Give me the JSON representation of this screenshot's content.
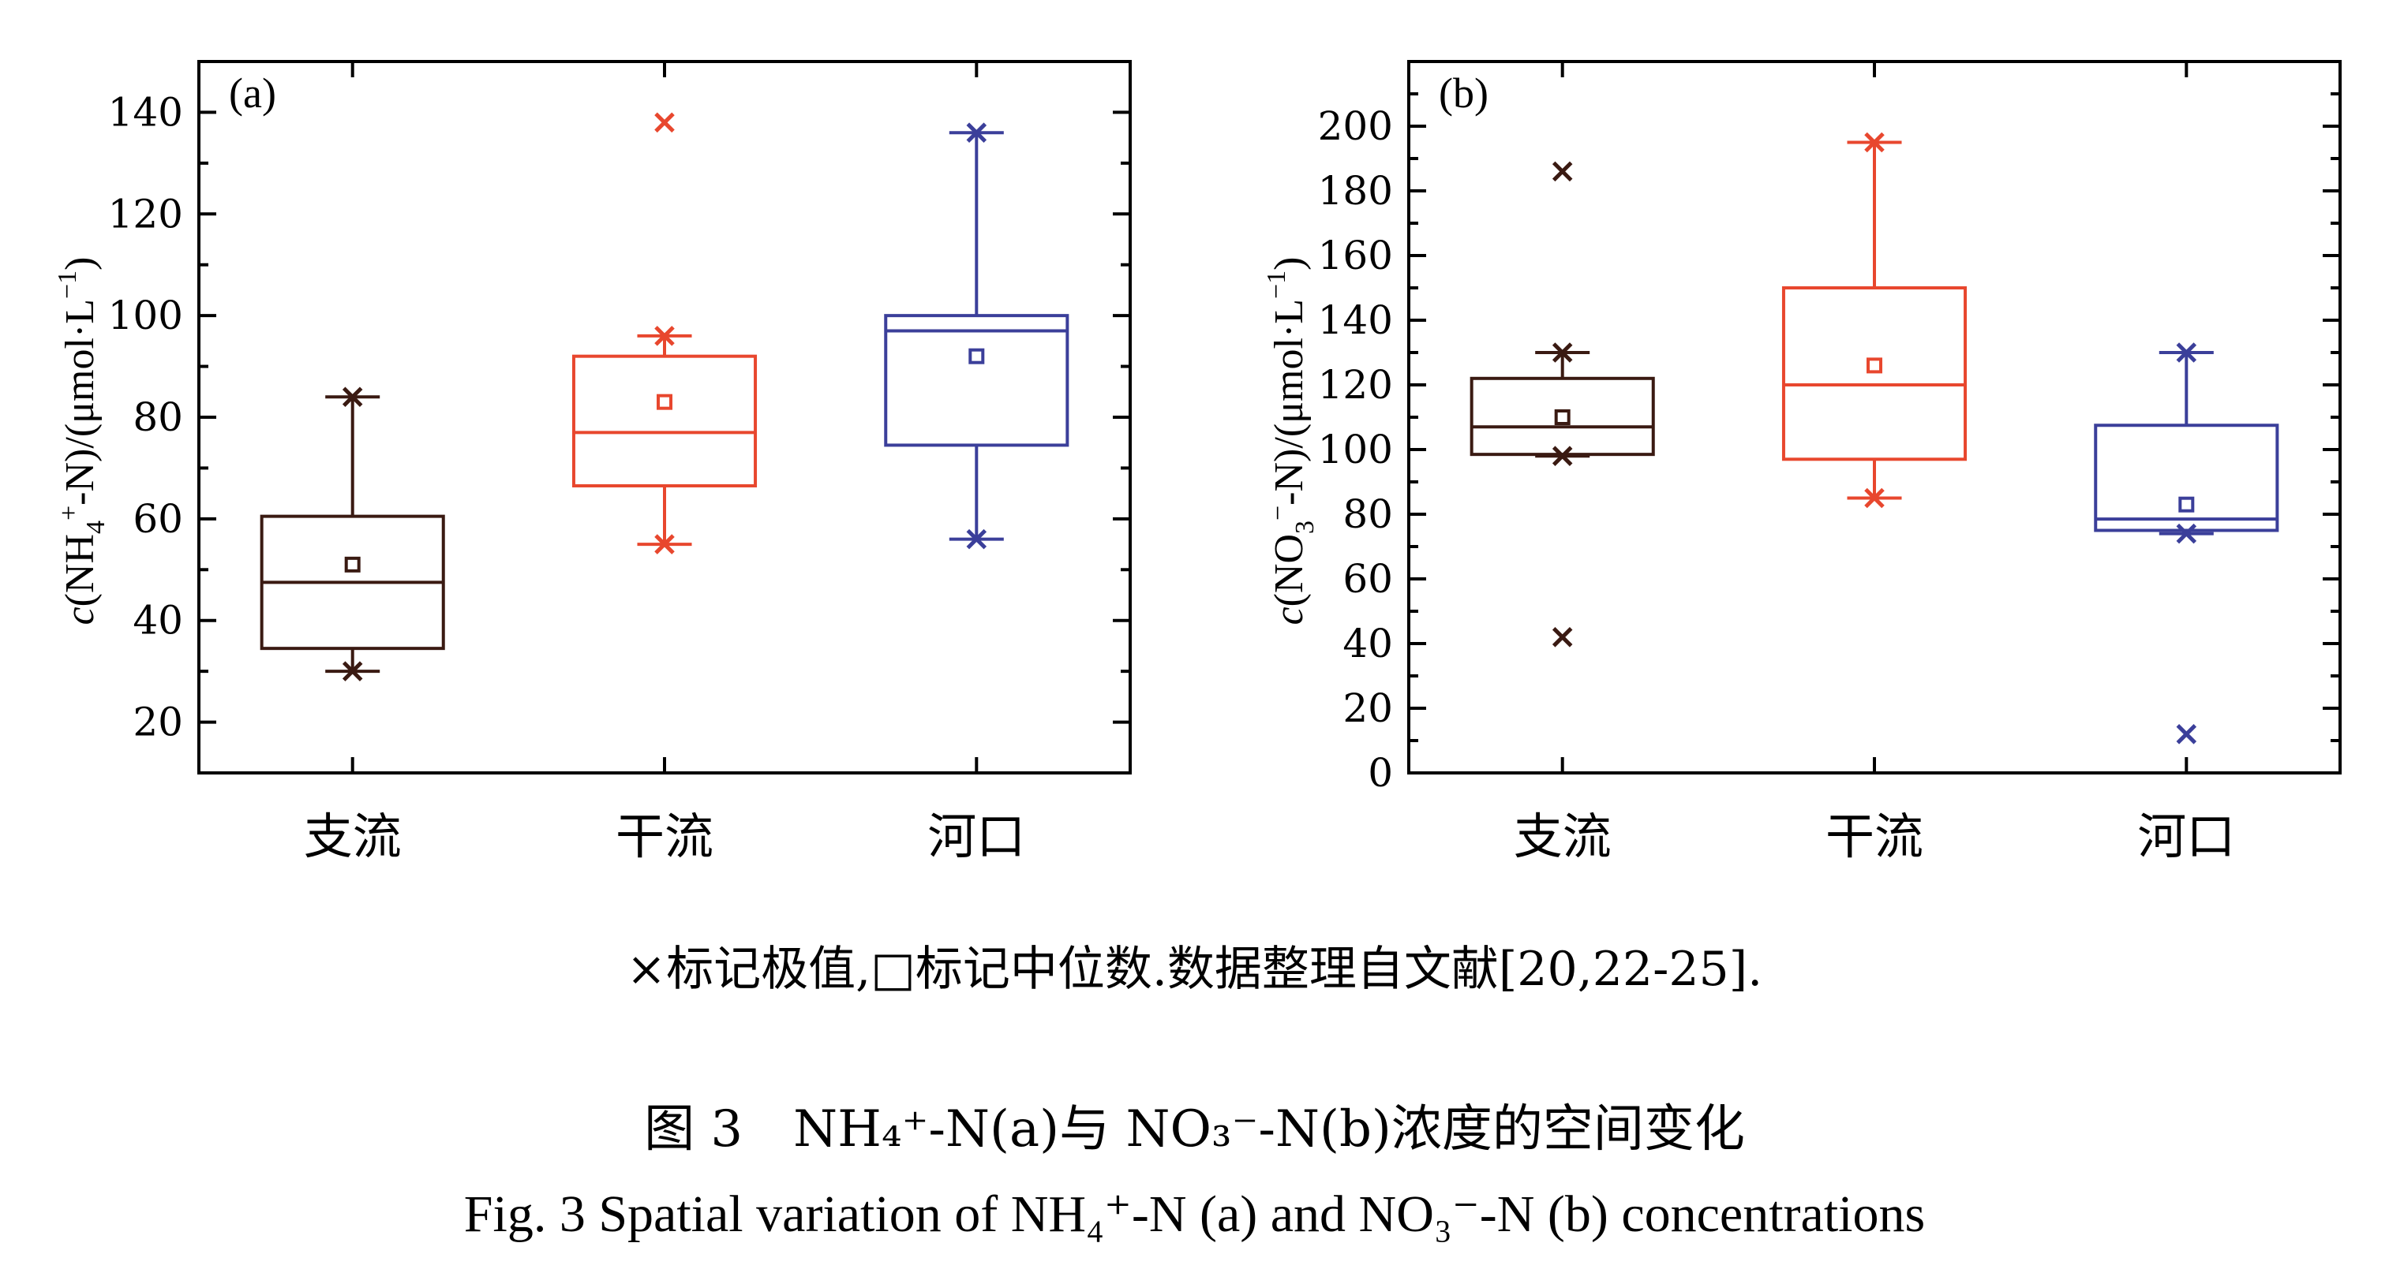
{
  "chart_data": [
    {
      "type": "box",
      "panel": "(a)",
      "ylabel": "c(NH4+-N)/(μmol·L−1)",
      "ylabel_parts": {
        "var": "c",
        "pre": "(NH",
        "sub": "4",
        "sup1": "+",
        "mid": "-N)/(μmol·L",
        "sup2": "−1",
        "post": ")"
      },
      "ylim": [
        10,
        150
      ],
      "yticks": [
        20,
        40,
        60,
        80,
        100,
        120,
        140
      ],
      "categories": [
        "支流",
        "干流",
        "河口"
      ],
      "colors": [
        "#3a1a12",
        "#e8472e",
        "#3b3f9a"
      ],
      "boxes": [
        {
          "whisker_low": 30,
          "q1": 34.5,
          "median": 47.5,
          "q3": 60.5,
          "whisker_high": 84,
          "mean": 51,
          "outliers": []
        },
        {
          "whisker_low": 55,
          "q1": 66.5,
          "median": 77,
          "q3": 92,
          "whisker_high": 96,
          "mean": 83,
          "outliers": [
            138
          ]
        },
        {
          "whisker_low": 56,
          "q1": 74.5,
          "median": 97,
          "q3": 100,
          "whisker_high": 136,
          "mean": 92,
          "outliers": []
        }
      ],
      "tick_labels": [
        "20",
        "40",
        "60",
        "80",
        "100",
        "120",
        "140"
      ]
    },
    {
      "type": "box",
      "panel": "(b)",
      "ylabel": "c(NO3−-N)/(μmol·L−1)",
      "ylabel_parts": {
        "var": "c",
        "pre": "(NO",
        "sub": "3",
        "sup1": "−",
        "mid": "-N)/(μmol·L",
        "sup2": "−1",
        "post": ")"
      },
      "ylim": [
        0,
        220
      ],
      "yticks": [
        0,
        20,
        40,
        60,
        80,
        100,
        120,
        140,
        160,
        180,
        200
      ],
      "categories": [
        "支流",
        "干流",
        "河口"
      ],
      "colors": [
        "#3a1a12",
        "#e8472e",
        "#3b3f9a"
      ],
      "boxes": [
        {
          "whisker_low": 98,
          "q1": 98.5,
          "median": 107,
          "q3": 122,
          "whisker_high": 130,
          "mean": 110,
          "outliers": [
            186,
            42
          ]
        },
        {
          "whisker_low": 85,
          "q1": 97,
          "median": 120,
          "q3": 150,
          "whisker_high": 195,
          "mean": 126,
          "outliers": []
        },
        {
          "whisker_low": 74,
          "q1": 75,
          "median": 78.5,
          "q3": 107.5,
          "whisker_high": 130,
          "mean": 83,
          "outliers": [
            12
          ]
        }
      ],
      "tick_labels": [
        "0",
        "20",
        "40",
        "60",
        "80",
        "100",
        "120",
        "140",
        "160",
        "180",
        "200"
      ]
    }
  ],
  "note": "×标记极值,□标记中位数.数据整理自文献[20,22-25].",
  "caption_cn": "图 3　NH₄⁺-N(a)与 NO₃⁻-N(b)浓度的空间变化",
  "caption_en": "Fig. 3  Spatial variation of NH₄⁺-N (a) and NO₃⁻-N (b) concentrations"
}
